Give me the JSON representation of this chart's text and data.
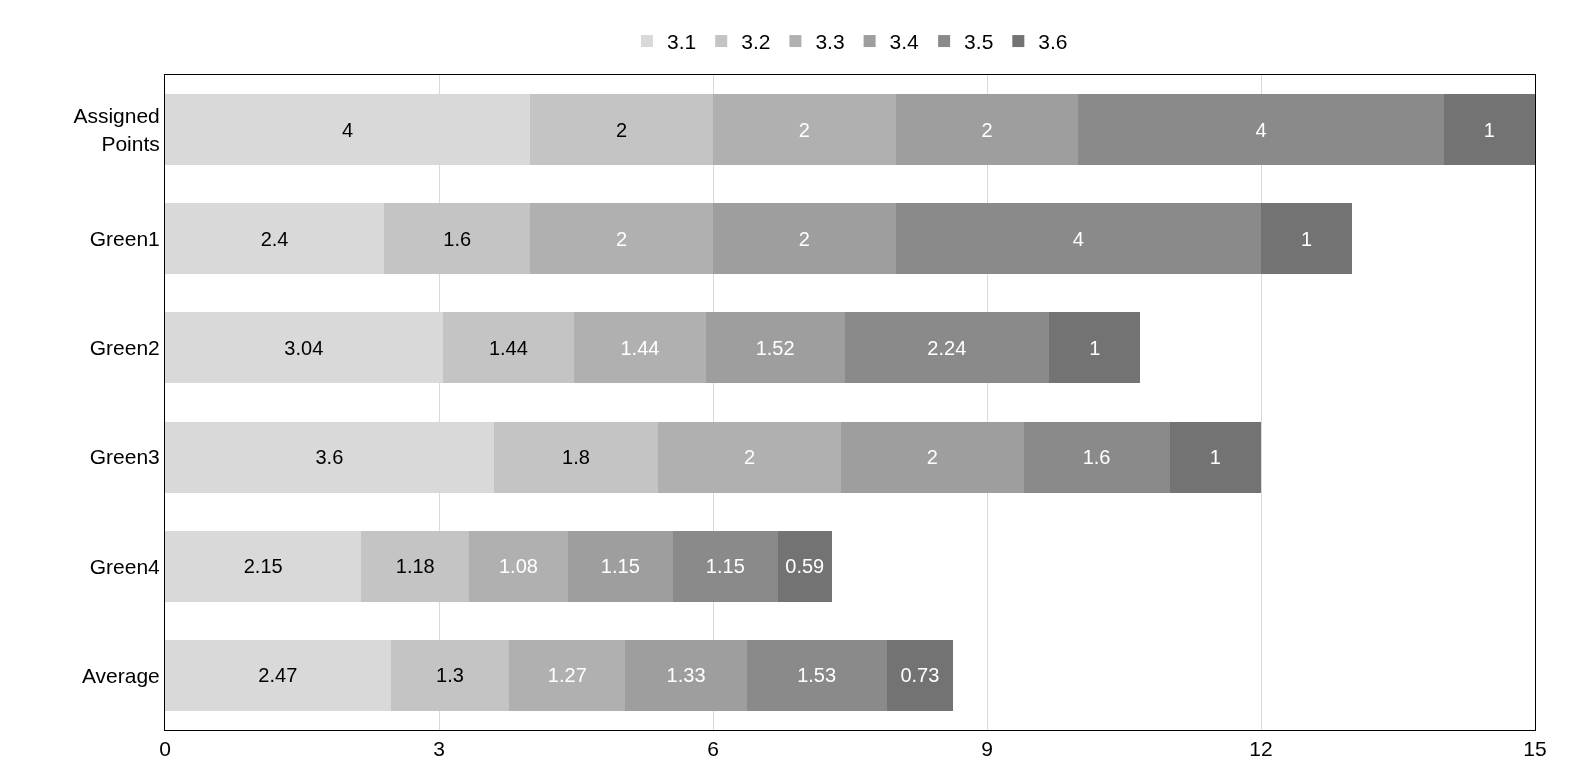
{
  "chart_data": {
    "type": "bar",
    "orientation": "horizontal",
    "stacked": true,
    "data_labels": true,
    "grid": "x",
    "legend": "top",
    "categories": [
      "Assigned\nPoints",
      "Green1",
      "Green2",
      "Green3",
      "Green4",
      "Average"
    ],
    "xlim": [
      0,
      15
    ],
    "xticks": [
      0,
      3,
      6,
      9,
      12,
      15
    ],
    "series": [
      {
        "name": "3.1",
        "color": "#d9d9d9",
        "values": [
          4,
          2.4,
          3.04,
          3.6,
          2.15,
          2.47
        ]
      },
      {
        "name": "3.2",
        "color": "#c4c4c4",
        "values": [
          2,
          1.6,
          1.44,
          1.8,
          1.18,
          1.3
        ]
      },
      {
        "name": "3.3",
        "color": "#b0b0b0",
        "values": [
          2,
          2,
          1.44,
          2,
          1.08,
          1.27
        ]
      },
      {
        "name": "3.4",
        "color": "#9e9e9e",
        "values": [
          2,
          2,
          1.52,
          2,
          1.15,
          1.33
        ]
      },
      {
        "name": "3.5",
        "color": "#8a8a8a",
        "values": [
          4,
          4,
          2.24,
          1.6,
          1.15,
          1.53
        ]
      },
      {
        "name": "3.6",
        "color": "#737373",
        "values": [
          1,
          1,
          1,
          1,
          0.59,
          0.73
        ]
      }
    ]
  }
}
